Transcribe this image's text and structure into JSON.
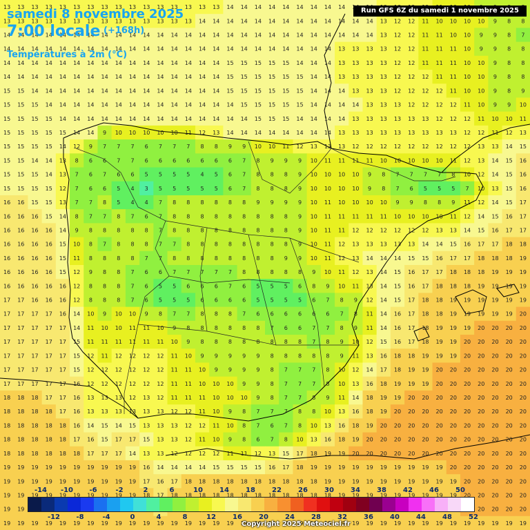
{
  "header": {
    "date_line": "samedi 8 novembre 2025",
    "time_line": "7:00 locale",
    "lead_time": "(+168h)",
    "variable": "Températures à 2m (°C)",
    "run_info": "Run GFS 6Z du samedi 1 novembre 2025"
  },
  "footer": {
    "copyright": "Copyright 2025 Meteociel.fr"
  },
  "legend": {
    "top_labels": [
      "-14",
      "-10",
      "-6",
      "-2",
      "2",
      "6",
      "10",
      "14",
      "18",
      "22",
      "26",
      "30",
      "34",
      "38",
      "42",
      "46",
      "50"
    ],
    "bottom_labels": [
      "-12",
      "-8",
      "-4",
      "0",
      "4",
      "8",
      "12",
      "16",
      "20",
      "24",
      "28",
      "32",
      "36",
      "40",
      "44",
      "48",
      "52"
    ],
    "colors": [
      "#0a1a4a",
      "#0a2a7a",
      "#0a3ab0",
      "#0a28d8",
      "#1a3af0",
      "#1a70f0",
      "#1aa0f0",
      "#20c8f0",
      "#40e0d8",
      "#50f0a0",
      "#60f060",
      "#90f040",
      "#c0f030",
      "#e8f020",
      "#f8f850",
      "#f8f890",
      "#f8e870",
      "#f8d050",
      "#f8b040",
      "#f89030",
      "#f06020",
      "#f03020",
      "#e01010",
      "#c00010",
      "#a00010",
      "#800020",
      "#700050",
      "#9a0090",
      "#c800c0",
      "#f030f0",
      "#f870f8",
      "#f8b0f8",
      "#f8d8f8",
      "#ffffff"
    ]
  },
  "map": {
    "grid_cols": 38,
    "grid_rows": 38,
    "values": [
      "13 13 13 13 13 13 13 13 13 13 13 13 13 13 13 13 14 14 14 14 14 14 14 14 14 14 14 13 13 12 12 11 10 10 9 9 8 8",
      "13 13 13 13 13 13 13 13 13 13 13 13 13 13 14 14 14 14 14 14 14 14 14 14 14 14 14 13 12 12 11 10 10 10 10 9 8 8",
      "14 14 14 14 14 14 14 14 14 14 14 14 14 14 14 14 14 14 14 14 14 14 14 14 14 14 14 13 12 12 11 11 10 10 9 9 8 7",
      "14 14 14 14 14 14 14 14 14 14 14 14 14 14 14 14 14 14 14 14 14 14 14 14 13 13 13 13 12 12 11 11 11 10 9 9 8 8",
      "14 14 14 14 14 14 14 14 14 14 14 14 14 14 14 14 15 15 15 15 15 14 14 14 13 13 13 13 12 12 11 11 11 10 10 9 8 8",
      "14 14 14 14 14 14 14 14 14 14 14 14 14 14 14 14 15 15 15 15 15 15 14 14 13 13 13 13 12 12 12 11 11 10 10 9 8 8",
      "15 15 14 14 14 14 14 14 14 14 14 14 14 14 14 14 15 15 15 15 15 15 14 14 14 13 13 13 12 12 12 12 11 10 10 9 8 9",
      "15 15 15 14 14 14 14 14 14 14 14 14 14 14 14 14 14 15 15 15 15 15 14 14 14 14 13 13 13 12 12 12 12 11 10 9 9 10",
      "15 15 15 15 14 14 14 14 14 14 14 14 14 14 14 14 14 14 15 15 15 14 14 14 14 13 13 13 13 13 13 12 12 12 11 10 10 11",
      "15 15 15 15 15 14 14 9 10 10 10 10 10 11 12 13 14 14 14 14 14 14 14 14 13 13 13 13 13 13 13 13 13 12 12 11 12 13",
      "15 15 15 15 14 12 9 7 7 7 6 7 7 7 8 8 9 9 10 10 11 12 13 13 13 12 12 12 12 12 12 12 12 12 13 13 14 15",
      "15 15 14 14 13 8 6 6 7 7 6 6 6 6 6 6 6 7 8 9 9 9 10 11 11 11 11 10 10 10 10 10 11 12 13 14 15 16",
      "15 15 15 14 13 7 6 7 6 6 5 5 5 5 4 5 6 7 8 8 8 9 10 10 10 10 9 8 7 7 7 7 8 10 12 14 15 16",
      "15 15 15 15 12 7 6 6 5 4 3 5 5 5 5 5 6 7 8 8 8 9 10 10 10 10 9 8 7 6 5 5 5 7 10 13 15 16",
      "16 16 15 15 13 7 7 8 5 4 4 7 8 8 8 8 8 8 9 9 9 9 10 11 10 10 10 10 9 9 8 8 9 11 12 14 15 17",
      "16 16 16 15 14 8 7 7 8 7 6 7 8 8 8 8 8 8 8 8 8 9 10 11 11 11 11 11 10 10 10 10 11 12 14 15 16 17",
      "16 16 16 16 14 9 8 8 8 8 8 7 8 8 8 8 8 8 8 8 8 9 10 11 11 12 12 12 12 12 12 13 13 14 15 16 17 17",
      "16 16 16 16 15 10 8 7 8 8 8 7 7 8 8 8 8 8 8 8 8 9 10 11 12 13 13 13 13 13 14 14 15 16 17 17 18 18",
      "16 16 16 16 15 11 8 8 8 8 7 7 8 8 8 8 8 8 8 8 9 9 10 11 12 13 14 14 14 15 15 16 17 17 18 18 18 19",
      "16 16 16 16 15 12 9 8 8 7 6 6 7 7 7 7 7 8 8 8 8 8 9 10 11 12 13 14 15 16 17 17 18 18 18 19 19 19",
      "16 16 16 16 16 12 8 8 8 7 6 5 5 6 6 6 7 6 5 5 5 6 8 9 10 11 13 14 15 16 17 18 18 18 19 19 19 19",
      "17 17 16 16 16 12 8 8 8 7 6 5 5 5 6 6 6 6 5 5 5 5 6 7 8 9 12 14 15 17 18 18 19 19 19 19 19 19",
      "17 17 17 17 16 14 10 9 10 10 9 8 7 7 8 8 8 7 6 6 6 6 6 6 7 8 11 14 16 17 18 18 19 19 19 19 19 20",
      "17 17 17 17 17 14 11 10 10 11 11 10 9 8 8 8 8 8 8 7 6 6 7 7 8 9 11 14 16 17 18 19 19 19 20 20 20 20",
      "17 17 17 17 17 15 11 11 11 11 11 11 10 9 8 8 8 8 8 8 8 8 7 8 9 10 12 15 16 17 18 19 19 20 20 20 20 20",
      "17 17 17 17 17 15 12 11 12 12 12 12 11 10 9 9 9 9 9 8 8 8 8 8 9 11 13 16 18 18 19 19 19 20 20 20 20 20",
      "17 17 17 17 17 15 12 12 12 12 12 12 11 11 10 9 9 9 9 8 7 7 7 8 10 12 14 17 18 19 19 20 20 20 20 20 20 20",
      "17 17 17 17 17 16 12 12 12 12 12 12 11 11 10 10 10 9 9 8 7 7 7 8 10 13 16 18 19 19 19 20 20 20 20 20 20 20",
      "18 18 18 17 17 16 13 13 13 12 13 12 11 11 11 10 10 10 9 8 7 7 8 9 11 14 18 19 19 20 20 20 20 20 20 20 20 20",
      "18 18 18 18 17 16 13 13 13 13 13 13 12 12 11 10 9 8 7 7 7 8 8 10 13 16 18 19 20 20 20 20 20 20 20 20 20 20",
      "18 18 18 18 18 16 14 15 14 15 13 13 13 12 12 11 10 8 7 6 7 8 10 13 16 18 19 20 20 20 20 20 20 20 20 20 20 20",
      "18 18 18 18 18 17 16 15 17 17 15 13 13 12 11 10 9 8 6 7 8 10 13 16 18 19 20 20 20 20 20 20 20 20 20 20 20 20",
      "18 18 18 18 18 18 17 17 17 14 13 13 12 12 12 12 11 11 12 13 15 17 18 19 19 20 20 20 20 20 20 20 20 20 20 20 20 20",
      "19 19 19 19 19 19 19 19 19 19 16 14 14 14 14 15 15 15 15 16 17 18 19 19 19 19 19 19 19 19 19 19 20 20 20 20 20 20",
      "19 19 19 19 19 19 19 19 19 19 17 16 17 18 18 18 18 18 18 18 18 18 18 19 19 19 19 19 19 19 19 19 19 20 20 20 20 20",
      "19 19 19 19 19 19 19 19 19 19 18 17 18 18 18 18 18 18 18 18 18 18 18 18 19 19 19 19 19 19 19 19 19 20 20 20 20 20",
      "19 19 19 19 19 19 19 19 19 19 18 17 18 18 18 18 18 18 18 18 18 18 18 18 18 18 19 19 19 19 19 19 19 20 20 20 20 20",
      "19 19 19 19 19 19 19 19 19 19 19 19 19 19 19 19 19 19 19 19 19 19 19 19 19 19 19 19 19 19 19 19 19 19 19 19 19 19"
    ]
  }
}
